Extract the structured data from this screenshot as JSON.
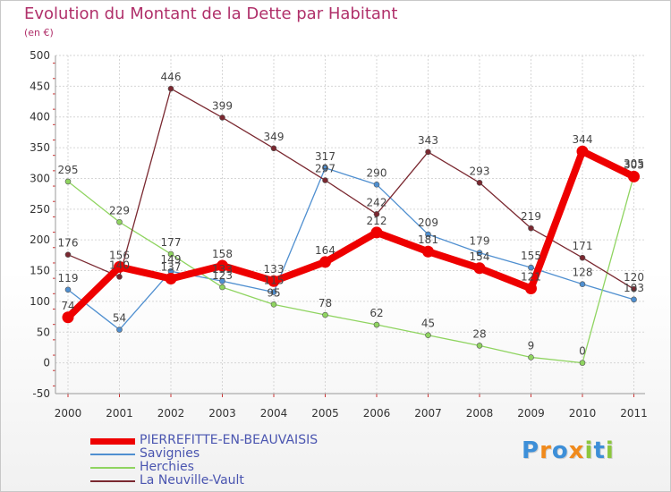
{
  "title": "Evolution du Montant de la Dette par Habitant",
  "subtitle": "(en €)",
  "logo": {
    "text": "Proxiti",
    "colors": [
      "#3d8fd8",
      "#f08a1c",
      "#3d8fd8",
      "#f08a1c",
      "#8cc63e",
      "#3d8fd8",
      "#8cc63e"
    ]
  },
  "chart_data": {
    "type": "line",
    "categories": [
      "2000",
      "2001",
      "2002",
      "2003",
      "2004",
      "2005",
      "2006",
      "2007",
      "2008",
      "2009",
      "2010",
      "2011"
    ],
    "ylim": [
      -50,
      500
    ],
    "yticks": [
      -50,
      0,
      50,
      100,
      150,
      200,
      250,
      300,
      350,
      400,
      450,
      500
    ],
    "grid": true,
    "legend_position": "bottom-left",
    "series": [
      {
        "name": "PIERREFITTE-EN-BEAUVAISIS",
        "color": "#ee0000",
        "values": [
          74,
          156,
          137,
          158,
          133,
          164,
          212,
          181,
          154,
          121,
          344,
          303
        ],
        "labels": [
          "74",
          "156",
          "137",
          "158",
          "133",
          "164",
          "212",
          "181",
          "154",
          "121",
          "344",
          "303"
        ]
      },
      {
        "name": "Savignies",
        "color": "#4f8fd0",
        "values": [
          119,
          54,
          149,
          133,
          115,
          317,
          290,
          209,
          179,
          155,
          128,
          103
        ],
        "labels": [
          "119",
          "54",
          "149",
          "133",
          "115",
          "317",
          "290",
          "209",
          "179",
          "155",
          "128",
          "103"
        ]
      },
      {
        "name": "Herchies",
        "color": "#8fd460",
        "values": [
          295,
          229,
          177,
          123,
          95,
          78,
          62,
          45,
          28,
          9,
          0,
          305
        ],
        "labels": [
          "295",
          "229",
          "177",
          "123",
          "95",
          "78",
          "62",
          "45",
          "28",
          "9",
          "0",
          "305"
        ]
      },
      {
        "name": "La Neuville-Vault",
        "color": "#7a2830",
        "values": [
          176,
          140,
          446,
          399,
          349,
          297,
          242,
          343,
          293,
          219,
          171,
          120
        ],
        "labels": [
          "176",
          "140",
          "446",
          "399",
          "349",
          "297",
          "242",
          "343",
          "293",
          "219",
          "171",
          "120"
        ]
      }
    ]
  }
}
